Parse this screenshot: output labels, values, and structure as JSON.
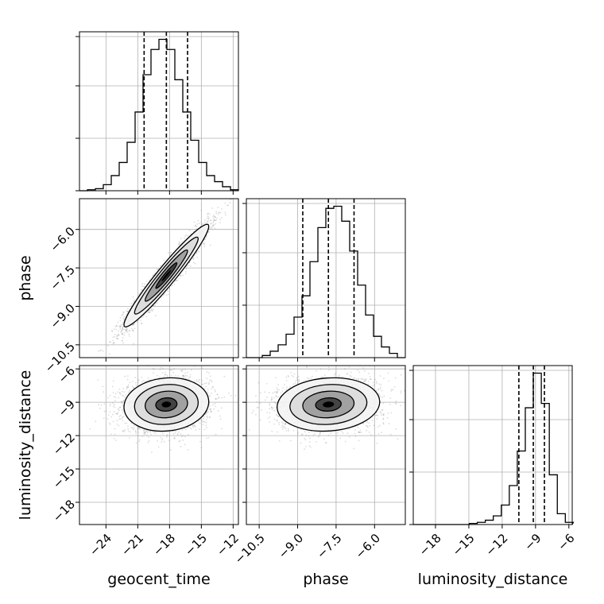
{
  "chart_data": {
    "type": "corner",
    "parameters": [
      "geocent_time",
      "phase",
      "luminosity_distance"
    ],
    "axis_labels": {
      "x": [
        "geocent_time",
        "phase",
        "luminosity_distance"
      ],
      "y": [
        "phase",
        "luminosity_distance"
      ]
    },
    "ranges": {
      "geocent_time": [
        -26.5,
        -11.5
      ],
      "phase": [
        -11.0,
        -4.8
      ],
      "luminosity_distance": [
        -20.0,
        -5.7
      ]
    },
    "ticks": {
      "geocent_time": [
        "-24",
        "-21",
        "-18",
        "-15",
        "-12"
      ],
      "phase": [
        "-10.5",
        "-9.0",
        "-7.5",
        "-6.0"
      ],
      "luminosity_distance": [
        "-18",
        "-15",
        "-12",
        "-9",
        "-6"
      ]
    },
    "quantiles": {
      "geocent_time": [
        -20.4,
        -18.3,
        -16.3
      ],
      "phase": [
        -8.8,
        -7.8,
        -6.8
      ],
      "luminosity_distance": [
        -10.5,
        -9.2,
        -8.2
      ]
    },
    "hist1d": {
      "geocent_time": {
        "x0": -26.5,
        "dx": 0.75,
        "counts": [
          0,
          1,
          2,
          6,
          15,
          28,
          48,
          78,
          115,
          140,
          150,
          140,
          110,
          78,
          50,
          28,
          15,
          9,
          4,
          1
        ]
      },
      "phase": {
        "x0": -11.0,
        "dx": 0.31,
        "counts": [
          0,
          0,
          2,
          6,
          12,
          22,
          38,
          58,
          90,
          122,
          140,
          142,
          128,
          100,
          68,
          40,
          20,
          10,
          4,
          0
        ]
      },
      "luminosity_distance": {
        "x0": -20.0,
        "dx": 0.72,
        "counts": [
          0,
          0,
          0,
          0,
          0,
          0,
          0,
          1,
          2,
          4,
          8,
          18,
          36,
          68,
          108,
          140,
          112,
          46,
          10,
          2
        ]
      }
    },
    "pairs": [
      {
        "x": "geocent_time",
        "y": "phase",
        "mean": [
          -18.3,
          -7.8
        ],
        "sd": [
          2.0,
          1.0
        ],
        "rho": 0.96
      },
      {
        "x": "geocent_time",
        "y": "luminosity_distance",
        "mean": [
          -18.3,
          -9.2
        ],
        "sd": [
          2.0,
          1.2
        ],
        "rho": 0.1
      },
      {
        "x": "phase",
        "y": "luminosity_distance",
        "mean": [
          -7.8,
          -9.2
        ],
        "sd": [
          1.0,
          1.2
        ],
        "rho": 0.1
      }
    ],
    "contour_levels": [
      "0.5-sigma",
      "1-sigma",
      "1.5-sigma",
      "2-sigma"
    ],
    "grid": true,
    "colors": {
      "line": "#000000",
      "grid": "#b0b0b0",
      "points": "#808080",
      "density": "#000000"
    }
  }
}
